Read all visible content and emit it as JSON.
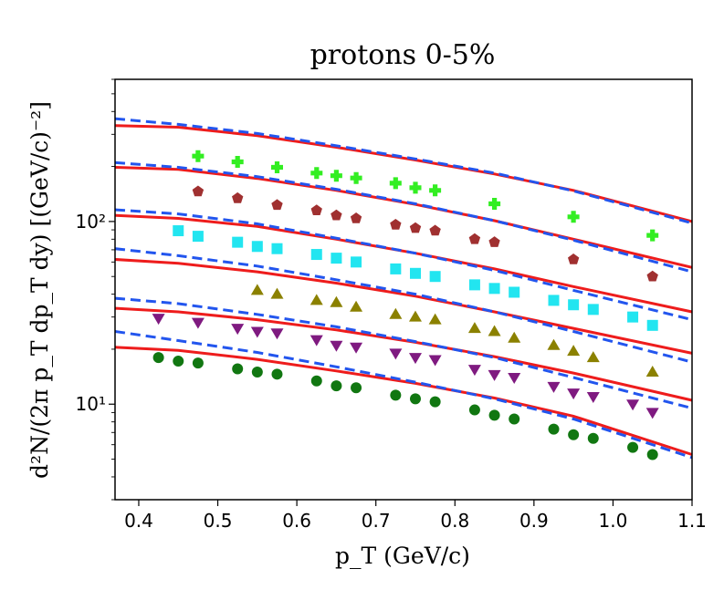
{
  "chart_data": {
    "type": "scatter",
    "title": "protons 0-5%",
    "xlabel": "p_T (GeV/c)",
    "ylabel": "d²N/(2π p_T dp_T dy)  [(GeV/c)⁻²]",
    "xlim": [
      0.37,
      1.1
    ],
    "ylim": [
      3,
      600
    ],
    "yscale": "log",
    "grid": false,
    "x_ticks": [
      0.4,
      0.5,
      0.6,
      0.7,
      0.8,
      0.9,
      1.0,
      1.1
    ],
    "x_tick_labels": [
      "0.4",
      "0.5",
      "0.6",
      "0.7",
      "0.8",
      "0.9",
      "1.0",
      "1.1"
    ],
    "y_major_ticks": [
      10,
      100
    ],
    "y_tick_labels": [
      "10¹",
      "10²"
    ],
    "series": [
      {
        "marker": "plus",
        "color": "#33ee22",
        "x": [
          0.475,
          0.525,
          0.575,
          0.625,
          0.65,
          0.675,
          0.725,
          0.75,
          0.775,
          0.85,
          0.95,
          1.05
        ],
        "y": [
          228,
          212,
          198,
          184,
          178,
          173,
          162,
          153,
          148,
          125,
          106,
          84
        ]
      },
      {
        "marker": "pentagon",
        "color": "#a03030",
        "x": [
          0.475,
          0.525,
          0.575,
          0.625,
          0.65,
          0.675,
          0.725,
          0.75,
          0.775,
          0.825,
          0.85,
          0.95,
          1.05
        ],
        "y": [
          146,
          134,
          123,
          115,
          108,
          104,
          96,
          92,
          89,
          80,
          77,
          62,
          50
        ]
      },
      {
        "marker": "square",
        "color": "#22e5f0",
        "x": [
          0.45,
          0.475,
          0.525,
          0.55,
          0.575,
          0.625,
          0.65,
          0.675,
          0.725,
          0.75,
          0.775,
          0.825,
          0.85,
          0.875,
          0.925,
          0.95,
          0.975,
          1.025,
          1.05
        ],
        "y": [
          89,
          83,
          77,
          73,
          71,
          66,
          63,
          60,
          55,
          52,
          50,
          45,
          43,
          41,
          37,
          35,
          33,
          30,
          27
        ]
      },
      {
        "marker": "triangle-up",
        "color": "#8b8100",
        "x": [
          0.55,
          0.575,
          0.625,
          0.65,
          0.675,
          0.725,
          0.75,
          0.775,
          0.825,
          0.85,
          0.875,
          0.925,
          0.95,
          0.975,
          1.05
        ],
        "y": [
          42,
          40,
          37,
          36,
          34,
          31,
          30,
          29,
          26,
          25,
          23,
          21,
          19.5,
          18,
          15
        ]
      },
      {
        "marker": "triangle-down",
        "color": "#7f1a80",
        "x": [
          0.425,
          0.475,
          0.525,
          0.55,
          0.575,
          0.625,
          0.65,
          0.675,
          0.725,
          0.75,
          0.775,
          0.825,
          0.85,
          0.875,
          0.925,
          0.95,
          0.975,
          1.025,
          1.05
        ],
        "y": [
          29.5,
          28,
          26,
          25,
          24.5,
          22.5,
          21,
          20.5,
          19,
          18,
          17.5,
          15.5,
          14.5,
          14,
          12.5,
          11.5,
          11,
          10,
          9
        ]
      },
      {
        "marker": "circle",
        "color": "#117711",
        "x": [
          0.425,
          0.45,
          0.475,
          0.525,
          0.55,
          0.575,
          0.625,
          0.65,
          0.675,
          0.725,
          0.75,
          0.775,
          0.825,
          0.85,
          0.875,
          0.925,
          0.95,
          0.975,
          1.025,
          1.05
        ],
        "y": [
          18,
          17.2,
          16.8,
          15.6,
          15,
          14.6,
          13.4,
          12.6,
          12.3,
          11.2,
          10.7,
          10.3,
          9.3,
          8.7,
          8.3,
          7.3,
          6.8,
          6.5,
          5.8,
          5.3
        ]
      }
    ],
    "curves": [
      {
        "style": "solid",
        "color": "#ee1c1c",
        "x": [
          0.37,
          0.45,
          0.55,
          0.65,
          0.75,
          0.85,
          0.95,
          1.1
        ],
        "y": [
          335,
          328,
          295,
          255,
          217,
          182,
          148,
          100
        ]
      },
      {
        "style": "dashed",
        "color": "#2255ee",
        "x": [
          0.37,
          0.45,
          0.55,
          0.65,
          0.75,
          0.85,
          0.95,
          1.1
        ],
        "y": [
          365,
          340,
          303,
          260,
          220,
          184,
          147,
          98
        ]
      },
      {
        "style": "solid",
        "color": "#ee1c1c",
        "x": [
          0.37,
          0.45,
          0.55,
          0.65,
          0.75,
          0.85,
          0.95,
          1.1
        ],
        "y": [
          198,
          193,
          172,
          148,
          124,
          101,
          80,
          56
        ]
      },
      {
        "style": "dashed",
        "color": "#2255ee",
        "x": [
          0.37,
          0.45,
          0.55,
          0.65,
          0.75,
          0.85,
          0.95,
          1.1
        ],
        "y": [
          210,
          198,
          176,
          150,
          125,
          101,
          79,
          53
        ]
      },
      {
        "style": "solid",
        "color": "#ee1c1c",
        "x": [
          0.37,
          0.45,
          0.55,
          0.65,
          0.75,
          0.85,
          0.95,
          1.1
        ],
        "y": [
          108,
          104,
          94,
          80,
          67,
          55,
          44,
          32
        ]
      },
      {
        "style": "dashed",
        "color": "#2255ee",
        "x": [
          0.37,
          0.45,
          0.55,
          0.65,
          0.75,
          0.85,
          0.95,
          1.1
        ],
        "y": [
          116,
          110,
          97,
          81,
          67,
          54,
          42,
          29
        ]
      },
      {
        "style": "solid",
        "color": "#ee1c1c",
        "x": [
          0.37,
          0.45,
          0.55,
          0.65,
          0.75,
          0.85,
          0.95,
          1.1
        ],
        "y": [
          62,
          59,
          53,
          46,
          39,
          32,
          26,
          19
        ]
      },
      {
        "style": "dashed",
        "color": "#2255ee",
        "x": [
          0.37,
          0.45,
          0.55,
          0.65,
          0.75,
          0.85,
          0.95,
          1.1
        ],
        "y": [
          71,
          65,
          57,
          48,
          40,
          32,
          25,
          17
        ]
      },
      {
        "style": "solid",
        "color": "#ee1c1c",
        "x": [
          0.37,
          0.45,
          0.55,
          0.65,
          0.75,
          0.85,
          0.95,
          1.1
        ],
        "y": [
          33.5,
          32,
          29,
          25.5,
          21.8,
          18.2,
          14.8,
          10.5
        ]
      },
      {
        "style": "dashed",
        "color": "#2255ee",
        "x": [
          0.37,
          0.45,
          0.55,
          0.65,
          0.75,
          0.85,
          0.95,
          1.1
        ],
        "y": [
          38,
          35.5,
          31,
          26.5,
          22,
          18,
          14,
          9.5
        ]
      },
      {
        "style": "solid",
        "color": "#ee1c1c",
        "x": [
          0.37,
          0.45,
          0.55,
          0.65,
          0.75,
          0.85,
          0.95,
          1.1
        ],
        "y": [
          20.5,
          19.7,
          17.6,
          15.2,
          13,
          10.8,
          8.6,
          5.3
        ]
      },
      {
        "style": "dashed",
        "color": "#2255ee",
        "x": [
          0.37,
          0.45,
          0.55,
          0.65,
          0.75,
          0.85,
          0.95,
          1.1
        ],
        "y": [
          25,
          22.3,
          19.2,
          16,
          13.2,
          10.7,
          8.3,
          5.1
        ]
      }
    ]
  }
}
